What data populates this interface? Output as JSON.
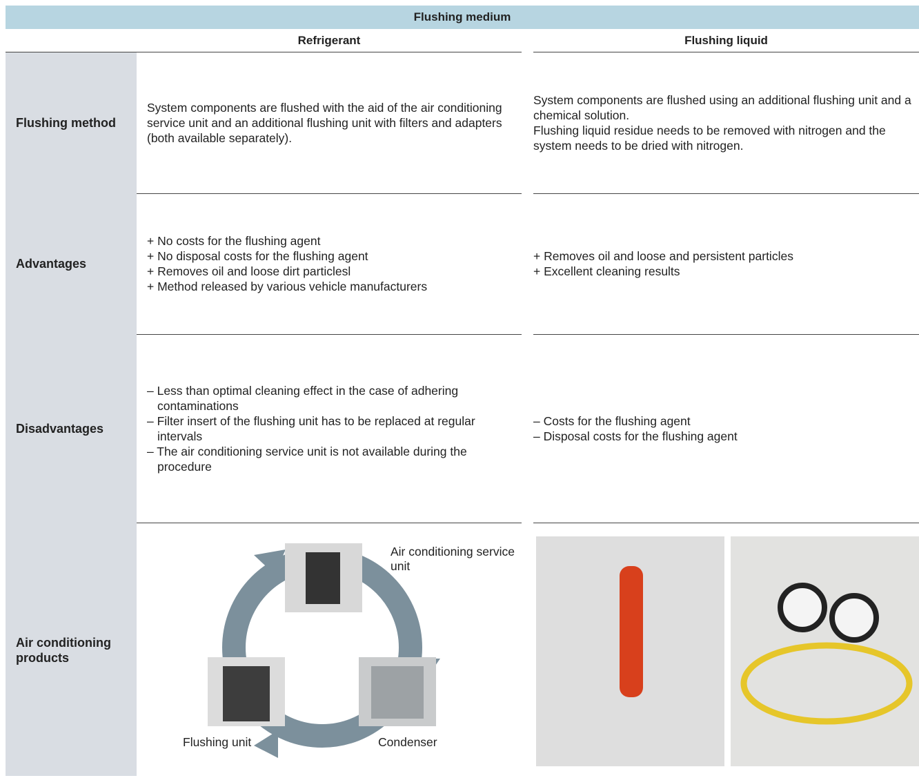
{
  "header": {
    "title": "Flushing medium"
  },
  "columns": [
    "Refrigerant",
    "Flushing liquid"
  ],
  "rows": [
    {
      "label": "Flushing method",
      "refrigerant": [
        "System components are flushed with the aid of the air conditioning service unit and an additional flushing unit with filters and adapters (both available separately)."
      ],
      "liquid": [
        "System components are flushed using an additional flushing unit and a chemical solution.",
        "Flushing liquid residue needs to be removed with nitrogen and the system needs to be dried with nitrogen."
      ]
    },
    {
      "label": "Advantages",
      "refrigerant": [
        "+ No costs for the flushing agent",
        "+ No disposal costs for the flushing agent",
        "+ Removes oil and loose dirt particlesl",
        "+ Method released by various vehicle manufacturers"
      ],
      "liquid": [
        "+ Removes oil and loose and persistent particles",
        "+ Excellent cleaning results"
      ]
    },
    {
      "label": "Disadvantages",
      "refrigerant": [
        "– Less than optimal cleaning effect in the case of adhering contaminations",
        "– Filter insert of the flushing unit has to be replaced at regular intervals",
        "– The air conditioning service unit is not available during the procedure"
      ],
      "liquid": [
        "– Costs for the flushing agent",
        "– Disposal costs for the flushing agent"
      ]
    },
    {
      "label": "Air conditioning products",
      "diagram_labels": [
        "Air conditioning service unit",
        "Condenser",
        "Flushing unit"
      ]
    }
  ]
}
